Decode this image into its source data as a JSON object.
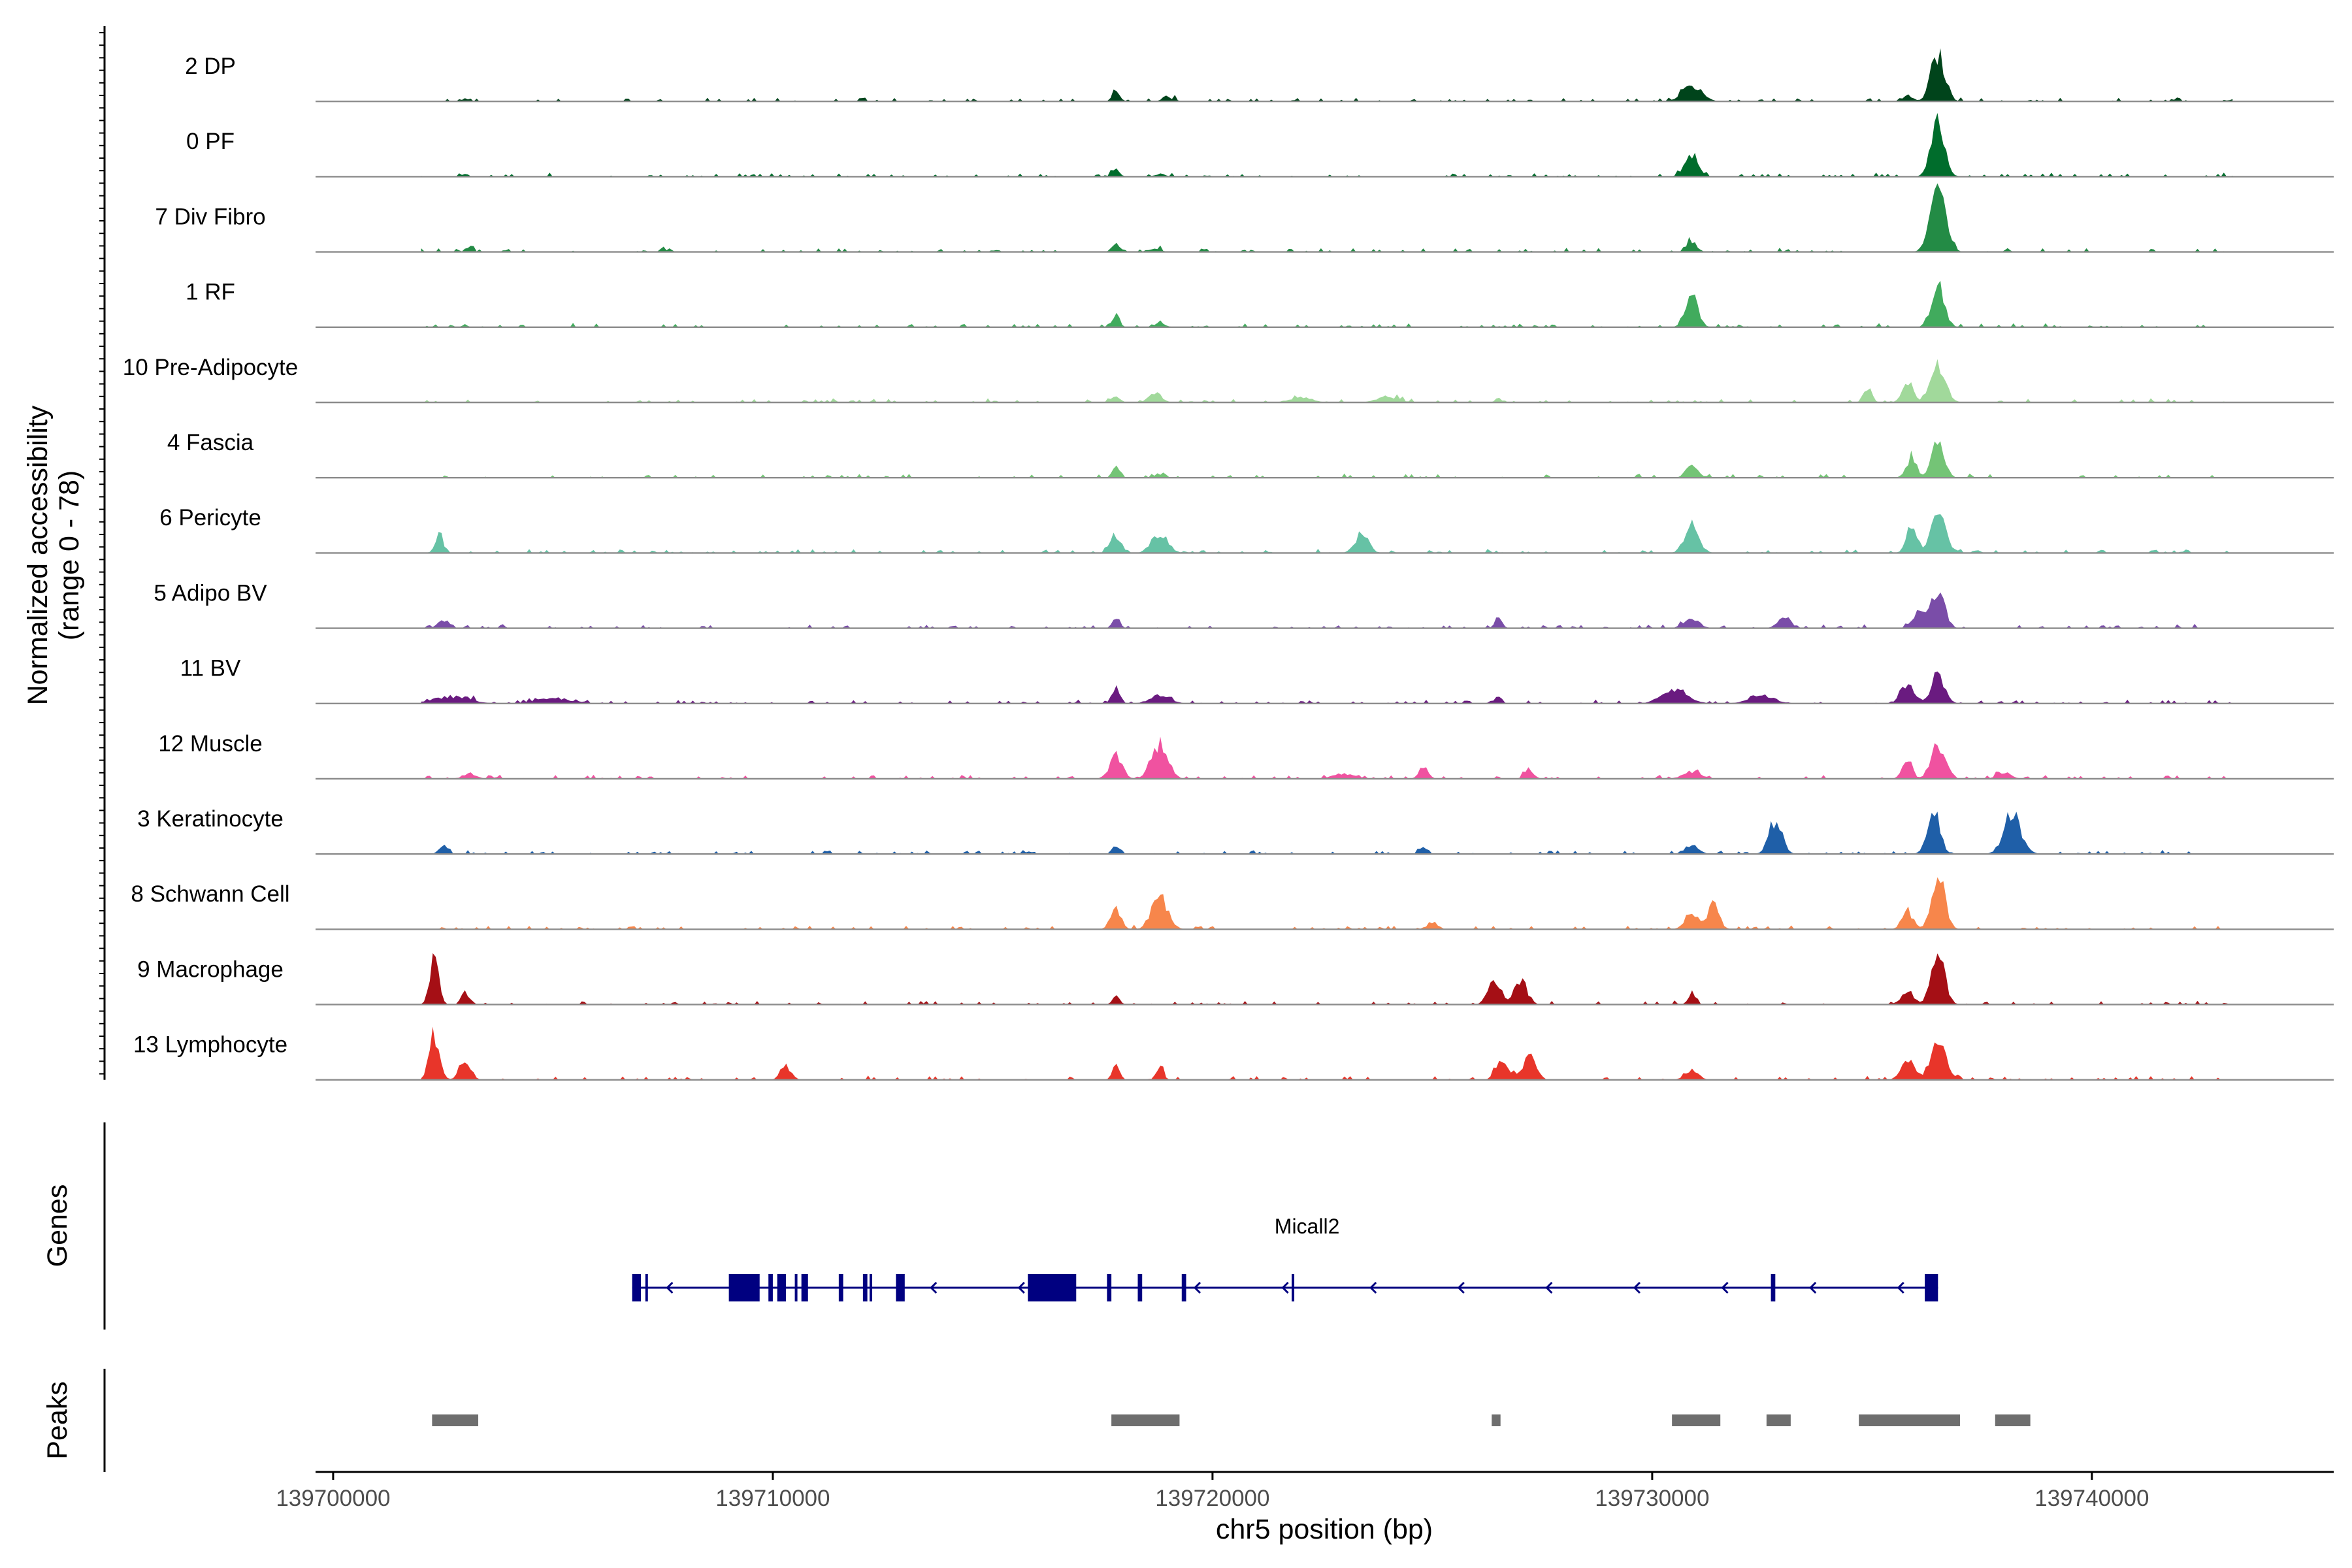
{
  "chart_data": {
    "type": "area",
    "title": "",
    "xlabel": "chr5 position (bp)",
    "ylabel": "Normalized accessibility",
    "ylabel_range": "(range 0 - 78)",
    "y_range": [
      0,
      78
    ],
    "xlim": [
      139699600,
      139745500
    ],
    "x_ticks": [
      139700000,
      139710000,
      139720000,
      139730000,
      139740000
    ],
    "x_tick_labels": [
      "139700000",
      "139710000",
      "139720000",
      "139730000",
      "139740000"
    ],
    "baseline_noise": 2,
    "tracks": [
      {
        "name": "2 DP",
        "color": "#00441b",
        "peaks": [
          [
            139703000,
            4,
            60
          ],
          [
            139717800,
            10,
            90
          ],
          [
            139719000,
            4,
            150
          ],
          [
            139730900,
            18,
            220
          ],
          [
            139736500,
            52,
            160
          ],
          [
            139735800,
            6,
            120
          ]
        ]
      },
      {
        "name": "0 PF",
        "color": "#006d2c",
        "peaks": [
          [
            139703000,
            4,
            60
          ],
          [
            139717800,
            8,
            90
          ],
          [
            139718800,
            3,
            120
          ],
          [
            139730900,
            22,
            160
          ],
          [
            139736500,
            62,
            150
          ]
        ]
      },
      {
        "name": "7 Div Fibro",
        "color": "#238b45",
        "peaks": [
          [
            139703100,
            6,
            80
          ],
          [
            139707500,
            5,
            60
          ],
          [
            139717800,
            10,
            90
          ],
          [
            139718700,
            4,
            130
          ],
          [
            139730900,
            12,
            110
          ],
          [
            139736500,
            78,
            170
          ]
        ]
      },
      {
        "name": "1 RF",
        "color": "#41ab5d",
        "peaks": [
          [
            139703000,
            3,
            60
          ],
          [
            139717800,
            14,
            80
          ],
          [
            139718800,
            5,
            120
          ],
          [
            139730900,
            36,
            140
          ],
          [
            139736500,
            44,
            150
          ]
        ]
      },
      {
        "name": "10 Pre-Adipocyte",
        "color": "#a1d99b",
        "peaks": [
          [
            139717800,
            8,
            90
          ],
          [
            139718700,
            10,
            150
          ],
          [
            139722000,
            6,
            250
          ],
          [
            139724000,
            6,
            250
          ],
          [
            139726500,
            6,
            60
          ],
          [
            139734900,
            18,
            90
          ],
          [
            139735800,
            24,
            120
          ],
          [
            139736500,
            46,
            170
          ]
        ]
      },
      {
        "name": "4 Fascia",
        "color": "#74c476",
        "peaks": [
          [
            139717800,
            12,
            80
          ],
          [
            139718800,
            4,
            120
          ],
          [
            139730900,
            14,
            130
          ],
          [
            139735900,
            22,
            120
          ],
          [
            139736500,
            40,
            140
          ]
        ]
      },
      {
        "name": "6 Pericyte",
        "color": "#66c2a5",
        "peaks": [
          [
            139702400,
            20,
            90
          ],
          [
            139717800,
            20,
            120
          ],
          [
            139718800,
            22,
            180
          ],
          [
            139723400,
            22,
            150
          ],
          [
            139730900,
            30,
            160
          ],
          [
            139735900,
            30,
            120
          ],
          [
            139736500,
            48,
            160
          ]
        ]
      },
      {
        "name": "5 Adipo BV",
        "color": "#7a4da8",
        "peaks": [
          [
            139702500,
            10,
            120
          ],
          [
            139717800,
            14,
            80
          ],
          [
            139726500,
            12,
            80
          ],
          [
            139730900,
            10,
            180
          ],
          [
            139733000,
            10,
            150
          ],
          [
            139736100,
            22,
            150
          ],
          [
            139736500,
            44,
            150
          ]
        ]
      },
      {
        "name": "11 BV",
        "color": "#6a1b80",
        "peaks": [
          [
            139702700,
            8,
            400
          ],
          [
            139705000,
            6,
            400
          ],
          [
            139717800,
            20,
            90
          ],
          [
            139718800,
            10,
            220
          ],
          [
            139726500,
            8,
            80
          ],
          [
            139730500,
            14,
            300
          ],
          [
            139732500,
            8,
            300
          ],
          [
            139735800,
            22,
            150
          ],
          [
            139736500,
            34,
            150
          ]
        ]
      },
      {
        "name": "12 Muscle",
        "color": "#f052a0",
        "peaks": [
          [
            139703100,
            6,
            150
          ],
          [
            139717800,
            24,
            150
          ],
          [
            139718800,
            40,
            180
          ],
          [
            139723000,
            6,
            250
          ],
          [
            139724800,
            14,
            100
          ],
          [
            139727200,
            10,
            100
          ],
          [
            139730900,
            8,
            200
          ],
          [
            139735800,
            22,
            110
          ],
          [
            139736500,
            40,
            150
          ],
          [
            139738000,
            8,
            150
          ]
        ]
      },
      {
        "name": "3 Keratinocyte",
        "color": "#1f5fa8",
        "peaks": [
          [
            139702500,
            10,
            90
          ],
          [
            139717800,
            10,
            80
          ],
          [
            139724800,
            8,
            80
          ],
          [
            139730900,
            10,
            150
          ],
          [
            139732800,
            38,
            150
          ],
          [
            139736400,
            56,
            140
          ],
          [
            139738200,
            42,
            200
          ]
        ]
      },
      {
        "name": "8 Schwann Cell",
        "color": "#f7864b",
        "peaks": [
          [
            139717800,
            22,
            120
          ],
          [
            139718800,
            36,
            180
          ],
          [
            139725000,
            8,
            120
          ],
          [
            139730900,
            20,
            150
          ],
          [
            139731400,
            34,
            120
          ],
          [
            139735800,
            22,
            120
          ],
          [
            139736500,
            62,
            150
          ]
        ]
      },
      {
        "name": "9 Macrophage",
        "color": "#a50f15",
        "peaks": [
          [
            139702300,
            50,
            100
          ],
          [
            139703000,
            14,
            90
          ],
          [
            139717800,
            10,
            80
          ],
          [
            139726400,
            32,
            140
          ],
          [
            139727000,
            28,
            150
          ],
          [
            139730900,
            10,
            90
          ],
          [
            139735800,
            16,
            140
          ],
          [
            139736500,
            62,
            150
          ]
        ]
      },
      {
        "name": "13 Lymphocyte",
        "color": "#e8352a",
        "peaks": [
          [
            139702300,
            48,
            120
          ],
          [
            139703000,
            26,
            120
          ],
          [
            139710300,
            16,
            120
          ],
          [
            139717800,
            16,
            80
          ],
          [
            139718800,
            14,
            80
          ],
          [
            139726600,
            24,
            140
          ],
          [
            139727200,
            26,
            150
          ],
          [
            139730900,
            10,
            150
          ],
          [
            139735800,
            26,
            140
          ],
          [
            139736500,
            40,
            180
          ]
        ]
      }
    ],
    "genes": [
      {
        "name": "Micall2",
        "start": 139706800,
        "end": 139736500,
        "strand": "-",
        "exons": [
          [
            139706800,
            139707000
          ],
          [
            139707100,
            139707150
          ],
          [
            139709000,
            139709700
          ],
          [
            139709900,
            139710000
          ],
          [
            139710100,
            139710300
          ],
          [
            139710500,
            139710550
          ],
          [
            139710650,
            139710800
          ],
          [
            139711500,
            139711600
          ],
          [
            139712050,
            139712150
          ],
          [
            139712200,
            139712250
          ],
          [
            139712800,
            139713000
          ],
          [
            139715800,
            139716900
          ],
          [
            139717600,
            139717700
          ],
          [
            139718300,
            139718400
          ],
          [
            139719300,
            139719400
          ],
          [
            139721800,
            139721830
          ],
          [
            139732700,
            139732800
          ],
          [
            139736200,
            139736500
          ]
        ]
      }
    ],
    "peaks": [
      [
        139702250,
        139703300
      ],
      [
        139717700,
        139719250
      ],
      [
        139726350,
        139726550
      ],
      [
        139730450,
        139731550
      ],
      [
        139732600,
        139733150
      ],
      [
        139734700,
        139737000
      ],
      [
        139737800,
        139738600
      ]
    ],
    "panel_labels": {
      "genes": "Genes",
      "peaks": "Peaks"
    }
  }
}
